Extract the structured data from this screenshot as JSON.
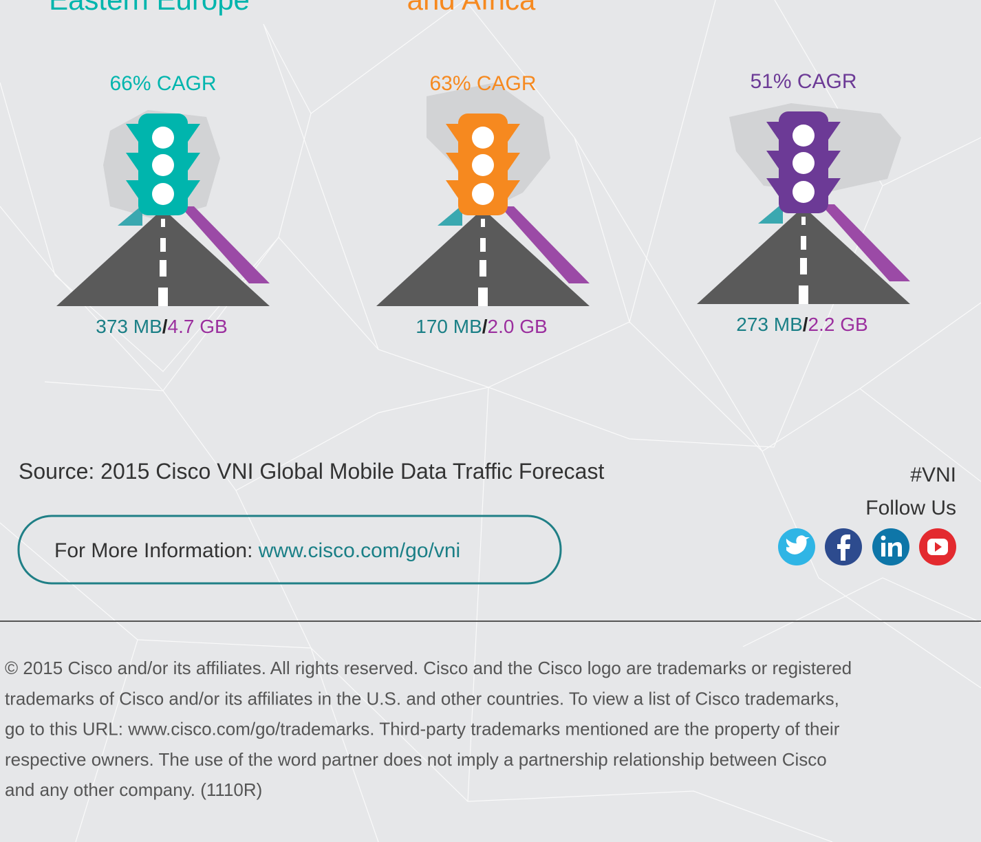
{
  "regions": [
    {
      "name": "Eastern Europe",
      "cagr": "66% CAGR",
      "traffic_a": "373 MB",
      "separator": "/",
      "traffic_b": "4.7 GB",
      "color": "#00b5ad",
      "name_color": "#00b5ad"
    },
    {
      "name": "and Africa",
      "cagr": "63% CAGR",
      "traffic_a": "170 MB",
      "separator": "/",
      "traffic_b": "2.0 GB",
      "color": "#f6891f",
      "name_color": "#f6891f"
    },
    {
      "cagr": "51% CAGR",
      "traffic_a": "273 MB",
      "separator": "/",
      "traffic_b": "2.2 GB",
      "color": "#6c3a96"
    }
  ],
  "source": "Source: 2015 Cisco VNI Global Mobile Data Traffic Forecast",
  "info": {
    "label": "For More Information: ",
    "link": "www.cisco.com/go/vni"
  },
  "social": {
    "hashtag": "#VNI",
    "follow": "Follow Us"
  },
  "copyright": [
    "© 2015 Cisco and/or its affiliates. All rights reserved. Cisco and the Cisco logo are trademarks or registered",
    "trademarks of Cisco and/or its affiliates in the U.S. and other countries. To view a list of Cisco trademarks,",
    "go to this URL: www.cisco.com/go/trademarks. Third-party trademarks mentioned are the property of their",
    "respective owners. The use of the word partner does not imply a partnership relationship between Cisco",
    "and any other company. (1110R)"
  ]
}
